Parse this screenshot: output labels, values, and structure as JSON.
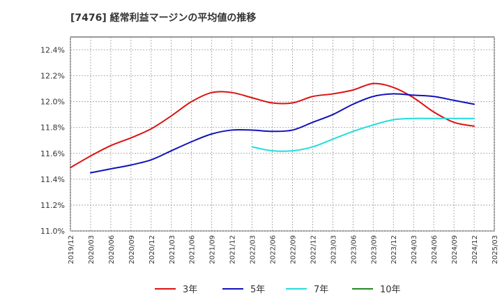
{
  "chart_data": {
    "type": "line",
    "title": "[7476]  経常利益マージンの平均値の推移",
    "xlabel": "",
    "ylabel": "",
    "ylim": [
      11.0,
      12.5
    ],
    "grid": true,
    "legend_position": "bottom",
    "y_ticks": [
      "11.0%",
      "11.2%",
      "11.4%",
      "11.6%",
      "11.8%",
      "12.0%",
      "12.2%",
      "12.4%"
    ],
    "x_ticks": [
      "2019/12",
      "2020/03",
      "2020/06",
      "2020/09",
      "2020/12",
      "2021/03",
      "2021/06",
      "2021/09",
      "2021/12",
      "2022/03",
      "2022/06",
      "2022/09",
      "2022/12",
      "2023/03",
      "2023/06",
      "2023/09",
      "2023/12",
      "2024/03",
      "2024/06",
      "2024/09",
      "2024/12",
      "2025/03"
    ],
    "series": [
      {
        "name": "3年",
        "color": "#dd1111",
        "points": [
          [
            "2019/12",
            11.49
          ],
          [
            "2020/03",
            11.58
          ],
          [
            "2020/06",
            11.66
          ],
          [
            "2020/09",
            11.72
          ],
          [
            "2020/12",
            11.79
          ],
          [
            "2021/03",
            11.89
          ],
          [
            "2021/06",
            12.0
          ],
          [
            "2021/09",
            12.07
          ],
          [
            "2021/12",
            12.07
          ],
          [
            "2022/03",
            12.03
          ],
          [
            "2022/06",
            11.99
          ],
          [
            "2022/09",
            11.99
          ],
          [
            "2022/12",
            12.04
          ],
          [
            "2023/03",
            12.06
          ],
          [
            "2023/06",
            12.09
          ],
          [
            "2023/09",
            12.14
          ],
          [
            "2023/12",
            12.11
          ],
          [
            "2024/03",
            12.03
          ],
          [
            "2024/06",
            11.92
          ],
          [
            "2024/09",
            11.84
          ],
          [
            "2024/12",
            11.81
          ]
        ]
      },
      {
        "name": "5年",
        "color": "#1111bb",
        "points": [
          [
            "2020/03",
            11.45
          ],
          [
            "2020/06",
            11.48
          ],
          [
            "2020/09",
            11.51
          ],
          [
            "2020/12",
            11.55
          ],
          [
            "2021/03",
            11.62
          ],
          [
            "2021/06",
            11.69
          ],
          [
            "2021/09",
            11.75
          ],
          [
            "2021/12",
            11.78
          ],
          [
            "2022/03",
            11.78
          ],
          [
            "2022/06",
            11.77
          ],
          [
            "2022/09",
            11.78
          ],
          [
            "2022/12",
            11.84
          ],
          [
            "2023/03",
            11.9
          ],
          [
            "2023/06",
            11.98
          ],
          [
            "2023/09",
            12.04
          ],
          [
            "2023/12",
            12.06
          ],
          [
            "2024/03",
            12.05
          ],
          [
            "2024/06",
            12.04
          ],
          [
            "2024/09",
            12.01
          ],
          [
            "2024/12",
            11.98
          ]
        ]
      },
      {
        "name": "7年",
        "color": "#22dddd",
        "points": [
          [
            "2022/03",
            11.65
          ],
          [
            "2022/06",
            11.62
          ],
          [
            "2022/09",
            11.62
          ],
          [
            "2022/12",
            11.65
          ],
          [
            "2023/03",
            11.71
          ],
          [
            "2023/06",
            11.77
          ],
          [
            "2023/09",
            11.82
          ],
          [
            "2023/12",
            11.86
          ],
          [
            "2024/03",
            11.87
          ],
          [
            "2024/06",
            11.87
          ],
          [
            "2024/09",
            11.87
          ],
          [
            "2024/12",
            11.87
          ]
        ]
      },
      {
        "name": "10年",
        "color": "#228822",
        "points": []
      }
    ]
  }
}
